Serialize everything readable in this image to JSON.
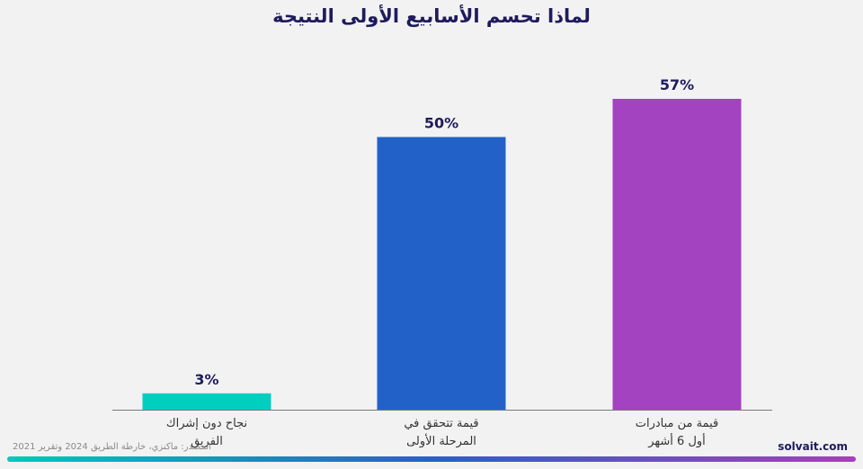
{
  "title": "لماذا تحسم الأسابيع الأولى النتيجة",
  "source": "المصدر: ماكنزي، خارطة الطريق 2024 وتقرير 2021",
  "brand": "solvait.com",
  "colors": {
    "title": "#1e1b5c",
    "gradient_start": "#00c9b7",
    "gradient_mid": "#2a5fc9",
    "gradient_end": "#a53fbf"
  },
  "chart_data": {
    "type": "bar",
    "categories": [
      [
        "نجاح دون إشراك",
        "الفريق"
      ],
      [
        "قيمة تتحقق في",
        "المرحلة الأولى"
      ],
      [
        "قيمة من مبادرات",
        "أول 6 أشهر"
      ]
    ],
    "values": [
      3,
      50,
      57
    ],
    "value_labels": [
      "3%",
      "50%",
      "57%"
    ],
    "bar_colors": [
      "#00cfc0",
      "#2262c8",
      "#a443bf"
    ],
    "ylim": [
      0,
      57
    ],
    "grid": false,
    "legend": "none"
  }
}
